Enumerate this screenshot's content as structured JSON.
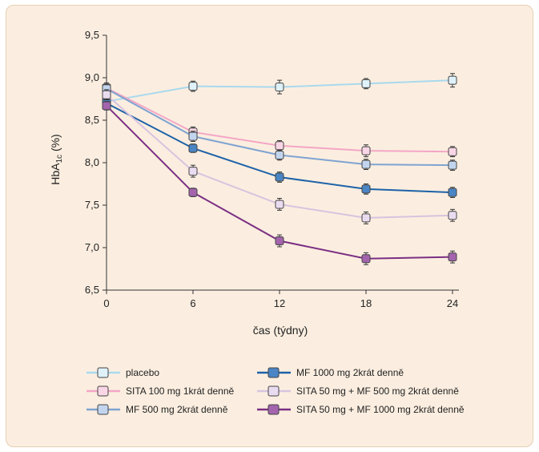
{
  "chart_data": {
    "type": "line",
    "xlabel": "čas (týdny)",
    "ylabel": "HbA1c (%)",
    "x": [
      0,
      6,
      12,
      18,
      24
    ],
    "xticks": [
      "0",
      "6",
      "12",
      "18",
      "24"
    ],
    "yticks": [
      "6,5",
      "7,0",
      "7,5",
      "8,0",
      "8,5",
      "9,0",
      "9,5"
    ],
    "xlim": [
      0,
      24
    ],
    "ylim": [
      6.5,
      9.5
    ],
    "grid": false,
    "legend_position": "bottom",
    "series": [
      {
        "name": "placebo",
        "values": [
          8.72,
          8.9,
          8.89,
          8.93,
          8.97
        ],
        "errors": [
          0.06,
          0.06,
          0.08,
          0.06,
          0.08
        ],
        "color": "#a9d9ee",
        "marker_fill": "#dff1f9"
      },
      {
        "name": "SITA 100 mg 1krát denně",
        "values": [
          8.88,
          8.36,
          8.2,
          8.14,
          8.13
        ],
        "errors": [
          0.06,
          0.06,
          0.06,
          0.07,
          0.06
        ],
        "color": "#f4a6c6",
        "marker_fill": "#f9d6e6"
      },
      {
        "name": "MF 500 mg 2krát denně",
        "values": [
          8.87,
          8.31,
          8.09,
          7.98,
          7.97
        ],
        "errors": [
          0.05,
          0.06,
          0.06,
          0.06,
          0.06
        ],
        "color": "#7fa3d1",
        "marker_fill": "#c3d5ee"
      },
      {
        "name": "MF 1000 mg 2krát denně",
        "values": [
          8.7,
          8.17,
          7.83,
          7.69,
          7.65
        ],
        "errors": [
          0.05,
          0.05,
          0.06,
          0.06,
          0.06
        ],
        "color": "#1d62a8",
        "marker_fill": "#4a86c5"
      },
      {
        "name": "SITA 50 mg + MF 500 mg 2krát denně",
        "values": [
          8.8,
          7.9,
          7.51,
          7.35,
          7.38
        ],
        "errors": [
          0.06,
          0.07,
          0.07,
          0.07,
          0.07
        ],
        "color": "#d7c3df",
        "marker_fill": "#eadcf0"
      },
      {
        "name": "SITA 50 mg + MF 1000 mg 2krát denně",
        "values": [
          8.67,
          7.65,
          7.08,
          6.87,
          6.89
        ],
        "errors": [
          0.05,
          0.05,
          0.07,
          0.07,
          0.07
        ],
        "color": "#7b2f84",
        "marker_fill": "#a364ad"
      }
    ]
  }
}
